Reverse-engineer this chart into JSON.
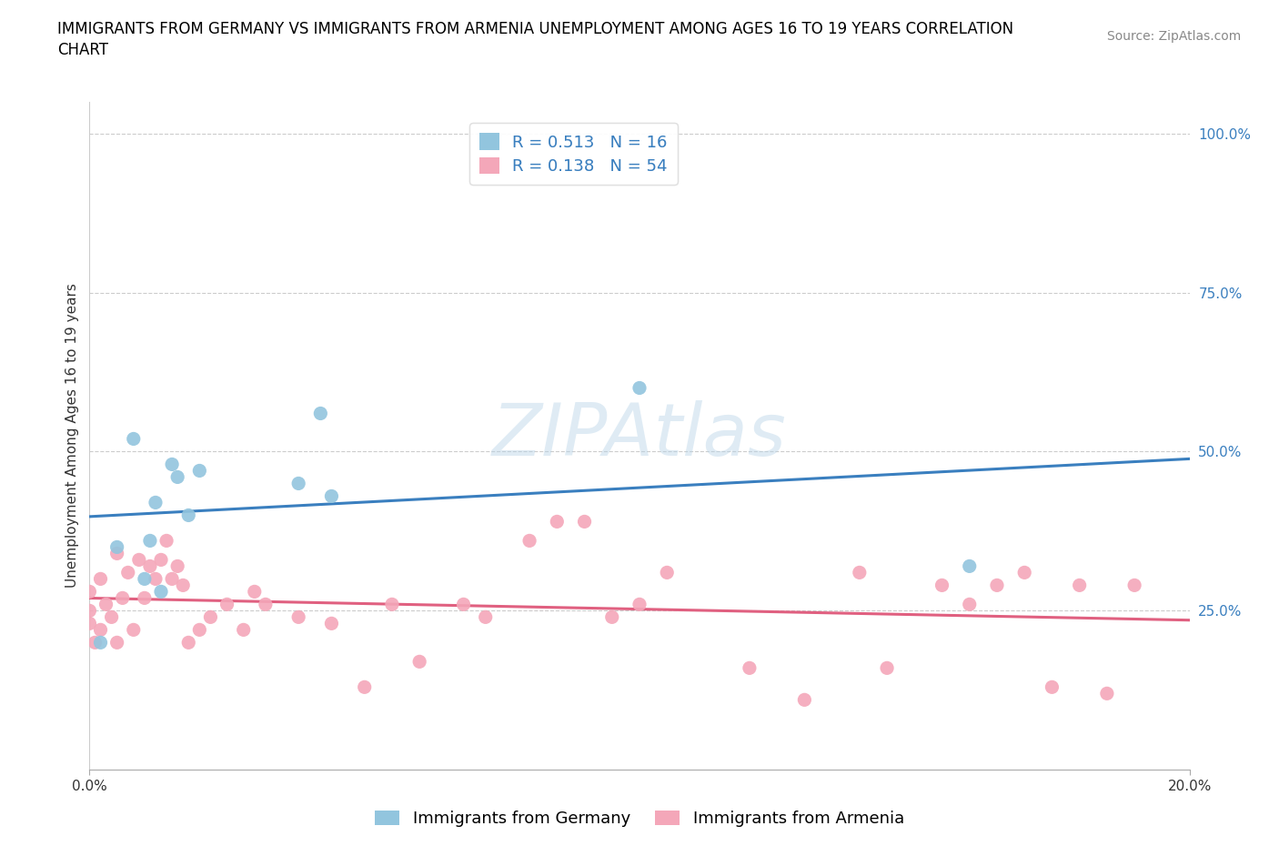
{
  "title_line1": "IMMIGRANTS FROM GERMANY VS IMMIGRANTS FROM ARMENIA UNEMPLOYMENT AMONG AGES 16 TO 19 YEARS CORRELATION",
  "title_line2": "CHART",
  "source": "Source: ZipAtlas.com",
  "ylabel": "Unemployment Among Ages 16 to 19 years",
  "watermark": "ZIPAtlas",
  "xlim": [
    0.0,
    0.2
  ],
  "ylim": [
    0.0,
    1.05
  ],
  "ytick_labels": [
    "25.0%",
    "50.0%",
    "75.0%",
    "100.0%"
  ],
  "ytick_values": [
    0.25,
    0.5,
    0.75,
    1.0
  ],
  "germany_R": 0.513,
  "germany_N": 16,
  "armenia_R": 0.138,
  "armenia_N": 54,
  "germany_color": "#92C5DE",
  "armenia_color": "#F4A7B9",
  "germany_line_color": "#3A7FBF",
  "armenia_line_color": "#E06080",
  "legend_label_germany": "Immigrants from Germany",
  "legend_label_armenia": "Immigrants from Armenia",
  "germany_x": [
    0.002,
    0.005,
    0.008,
    0.01,
    0.011,
    0.012,
    0.013,
    0.015,
    0.016,
    0.018,
    0.02,
    0.038,
    0.042,
    0.044,
    0.1,
    0.16
  ],
  "germany_y": [
    0.2,
    0.35,
    0.52,
    0.3,
    0.36,
    0.42,
    0.28,
    0.48,
    0.46,
    0.4,
    0.47,
    0.45,
    0.56,
    0.43,
    0.6,
    0.32
  ],
  "armenia_x": [
    0.0,
    0.0,
    0.0,
    0.001,
    0.002,
    0.002,
    0.003,
    0.004,
    0.005,
    0.005,
    0.006,
    0.007,
    0.008,
    0.009,
    0.01,
    0.011,
    0.012,
    0.013,
    0.014,
    0.015,
    0.016,
    0.017,
    0.018,
    0.02,
    0.022,
    0.025,
    0.028,
    0.03,
    0.032,
    0.038,
    0.044,
    0.05,
    0.055,
    0.06,
    0.068,
    0.072,
    0.08,
    0.085,
    0.09,
    0.095,
    0.1,
    0.105,
    0.12,
    0.13,
    0.14,
    0.145,
    0.155,
    0.16,
    0.165,
    0.17,
    0.175,
    0.18,
    0.185,
    0.19
  ],
  "armenia_y": [
    0.23,
    0.25,
    0.28,
    0.2,
    0.22,
    0.3,
    0.26,
    0.24,
    0.2,
    0.34,
    0.27,
    0.31,
    0.22,
    0.33,
    0.27,
    0.32,
    0.3,
    0.33,
    0.36,
    0.3,
    0.32,
    0.29,
    0.2,
    0.22,
    0.24,
    0.26,
    0.22,
    0.28,
    0.26,
    0.24,
    0.23,
    0.13,
    0.26,
    0.17,
    0.26,
    0.24,
    0.36,
    0.39,
    0.39,
    0.24,
    0.26,
    0.31,
    0.16,
    0.11,
    0.31,
    0.16,
    0.29,
    0.26,
    0.29,
    0.31,
    0.13,
    0.29,
    0.12,
    0.29
  ],
  "title_fontsize": 12,
  "axis_fontsize": 11,
  "tick_fontsize": 11,
  "legend_fontsize": 13,
  "source_fontsize": 10,
  "background_color": "#FFFFFF",
  "grid_color": "#CCCCCC"
}
